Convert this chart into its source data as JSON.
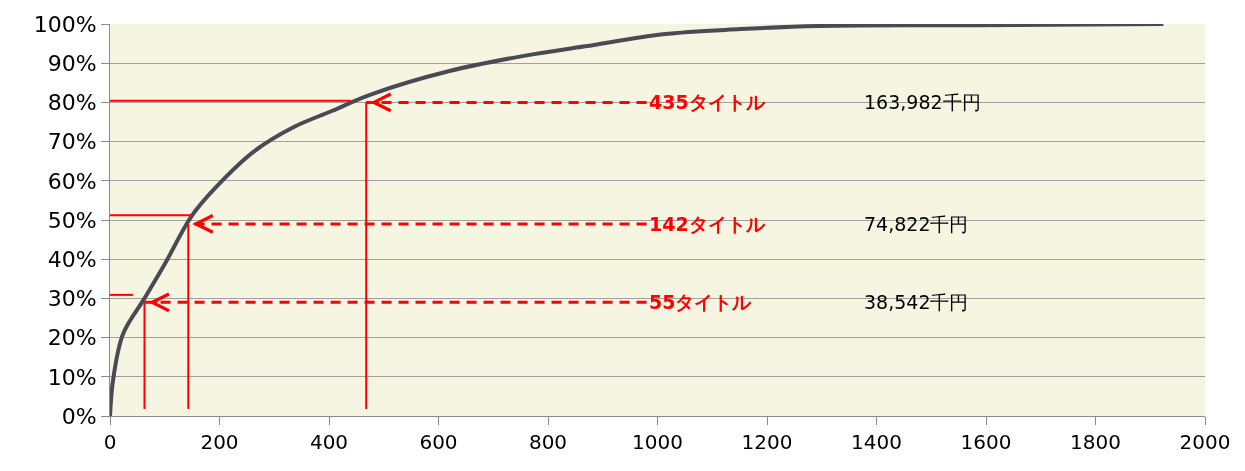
{
  "chart_data": {
    "type": "line",
    "xlim": [
      0,
      2000
    ],
    "ylim": [
      0,
      100
    ],
    "xticks": [
      0,
      200,
      400,
      600,
      800,
      1000,
      1200,
      1400,
      1600,
      1800,
      2000
    ],
    "yticks": [
      {
        "value": 0,
        "label": "0%"
      },
      {
        "value": 10,
        "label": "10%"
      },
      {
        "value": 20,
        "label": "20%"
      },
      {
        "value": 30,
        "label": "30%"
      },
      {
        "value": 40,
        "label": "40%"
      },
      {
        "value": 50,
        "label": "50%"
      },
      {
        "value": 60,
        "label": "60%"
      },
      {
        "value": 70,
        "label": "70%"
      },
      {
        "value": 80,
        "label": "80%"
      },
      {
        "value": 90,
        "label": "90%"
      },
      {
        "value": 100,
        "label": "100%"
      }
    ],
    "grid": "y",
    "series": [
      {
        "color": "#4a4a55",
        "x": [
          0,
          6,
          24,
          63,
          99,
          149,
          191,
          262,
          334,
          405,
          476,
          620,
          761,
          868,
          1010,
          1152,
          1295,
          1580,
          1924
        ],
        "values": [
          0,
          9.6,
          21,
          30,
          38.5,
          51,
          58,
          67.4,
          73.6,
          77.8,
          82,
          88,
          92,
          94.3,
          97.4,
          98.7,
          99.5,
          99.7,
          100
        ]
      },
      {
        "color": "#ff0000",
        "line_style": "solid",
        "x": [
          0,
          440
        ],
        "values": [
          80.4,
          80.4
        ]
      },
      {
        "color": "#ff0000",
        "line_style": "solid",
        "x": [
          468,
          468
        ],
        "values": [
          1.8,
          80
        ]
      },
      {
        "color": "#ff0000",
        "line_style": "solid",
        "x": [
          0,
          149
        ],
        "values": [
          51.2,
          51.2
        ]
      },
      {
        "color": "#ff0000",
        "line_style": "solid",
        "x": [
          143,
          143
        ],
        "values": [
          1.8,
          49
        ]
      },
      {
        "color": "#ff0000",
        "line_style": "solid",
        "x": [
          0,
          42
        ],
        "values": [
          30.9,
          30.9
        ]
      },
      {
        "color": "#ff0000",
        "line_style": "solid",
        "x": [
          63,
          63
        ],
        "values": [
          1.8,
          29
        ]
      }
    ],
    "annotations": [
      {
        "text": "435タイトル",
        "x": 468,
        "y": 80
      },
      {
        "text": "142タイトル",
        "x": 143,
        "y": 49
      },
      {
        "text": "55タイトル",
        "x": 63,
        "y": 29
      },
      "163,982千円",
      "74,822千円",
      "38,542千円"
    ]
  }
}
